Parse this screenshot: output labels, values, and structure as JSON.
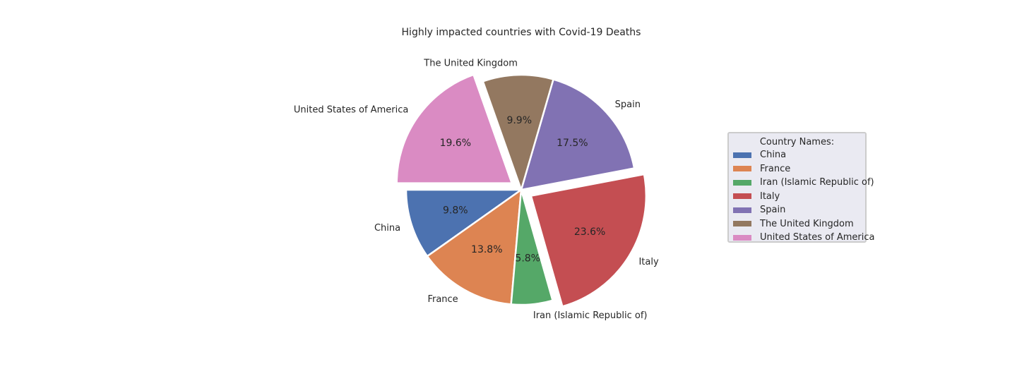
{
  "chart_data": {
    "type": "pie",
    "title": "Highly impacted countries with Covid-19 Deaths",
    "slices": [
      {
        "label": "China",
        "value": 9.8,
        "pct_label": "9.8%",
        "color": "#4c72b0",
        "explode": false
      },
      {
        "label": "France",
        "value": 13.8,
        "pct_label": "13.8%",
        "color": "#dd8452",
        "explode": false
      },
      {
        "label": "Iran (Islamic Republic of)",
        "value": 5.8,
        "pct_label": "5.8%",
        "color": "#55a868",
        "explode": false
      },
      {
        "label": "Italy",
        "value": 23.6,
        "pct_label": "23.6%",
        "color": "#c44e52",
        "explode": true
      },
      {
        "label": "Spain",
        "value": 17.5,
        "pct_label": "17.5%",
        "color": "#8172b3",
        "explode": false
      },
      {
        "label": "The United Kingdom",
        "value": 9.9,
        "pct_label": "9.9%",
        "color": "#937860",
        "explode": false
      },
      {
        "label": "United States of America",
        "value": 19.6,
        "pct_label": "19.6%",
        "color": "#da8bc3",
        "explode": true
      }
    ],
    "start_angle_deg": 180,
    "legend": {
      "title": "Country Names:",
      "placement": "right"
    }
  }
}
